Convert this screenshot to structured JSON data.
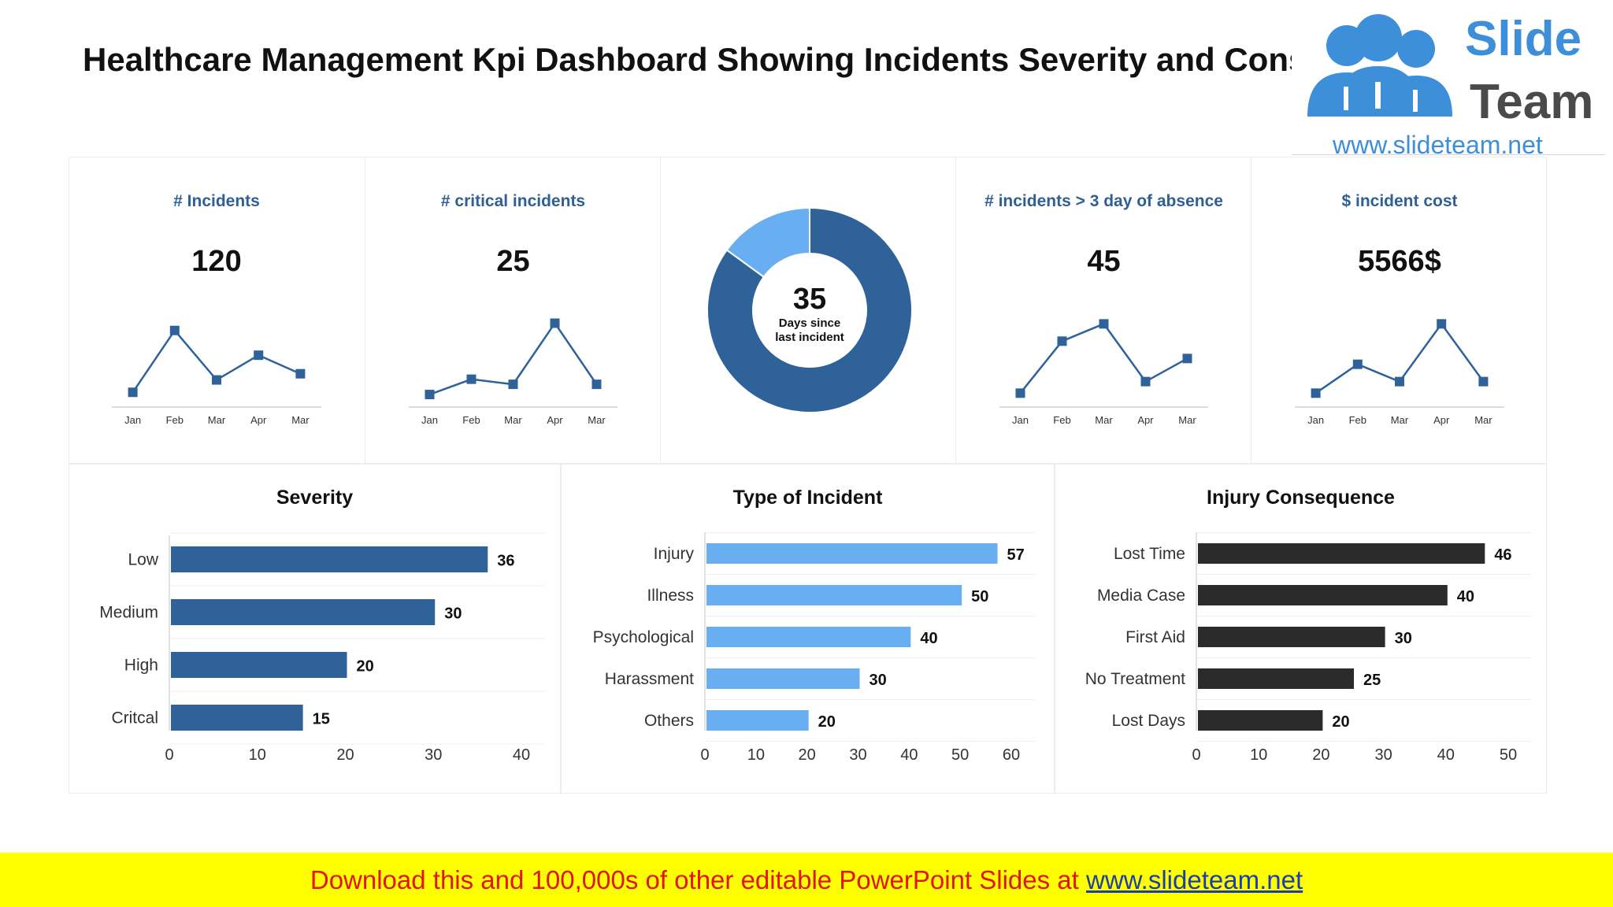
{
  "title": "Healthcare Management Kpi Dashboard Showing Incidents Severity and Consequences",
  "logo": {
    "word1": "Slide",
    "word2": "Team",
    "url": "www.slideteam.net"
  },
  "footer": {
    "text": "Download this and 100,000s of other editable PowerPoint Slides at ",
    "link": "www.slideteam.net"
  },
  "colors": {
    "dark_blue": "#2e6299",
    "light_blue": "#6aaef2",
    "black_bar": "#2b2b2b",
    "kpi_title": "#2f5f96"
  },
  "kpis": [
    {
      "title": "# Incidents",
      "value": "120"
    },
    {
      "title": "# critical incidents",
      "value": "25"
    },
    {
      "title": "# incidents > 3 day of absence",
      "value": "45"
    },
    {
      "title": "$ incident cost",
      "value": "5566$"
    }
  ],
  "donut": {
    "value": "35",
    "caption_line1": "Days since",
    "caption_line2": "last incident"
  },
  "chart_data": [
    {
      "type": "line",
      "categories": [
        "Jan",
        "Feb",
        "Mar",
        "Apr",
        "Mar"
      ],
      "values": [
        1,
        6,
        2,
        4,
        2.5
      ],
      "ylim": [
        0,
        7
      ]
    },
    {
      "type": "line",
      "categories": [
        "Jan",
        "Feb",
        "Mar",
        "Apr",
        "Mar"
      ],
      "values": [
        1,
        2.5,
        2,
        8,
        2
      ],
      "ylim": [
        0,
        8.5
      ]
    },
    {
      "type": "pie",
      "slices": [
        {
          "value": 85,
          "color": "#2e6299"
        },
        {
          "value": 15,
          "color": "#6aaef2"
        }
      ]
    },
    {
      "type": "line",
      "categories": [
        "Jan",
        "Feb",
        "Mar",
        "Apr",
        "Mar"
      ],
      "values": [
        1,
        5.5,
        7,
        2,
        4
      ],
      "ylim": [
        0,
        7.5
      ]
    },
    {
      "type": "line",
      "categories": [
        "Jan",
        "Feb",
        "Mar",
        "Apr",
        "Mar"
      ],
      "values": [
        1,
        3.5,
        2,
        7,
        2
      ],
      "ylim": [
        0,
        7.5
      ]
    },
    {
      "type": "bar",
      "orientation": "horizontal",
      "title": "Severity",
      "categories": [
        "Low",
        "Medium",
        "High",
        "Critcal"
      ],
      "values": [
        36,
        30,
        20,
        15
      ],
      "xlim": [
        0,
        40
      ],
      "ticks": [
        0,
        10,
        20,
        30,
        40
      ],
      "color": "#2e6299"
    },
    {
      "type": "bar",
      "orientation": "horizontal",
      "title": "Type of Incident",
      "categories": [
        "Injury",
        "Illness",
        "Psychological",
        "Harassment",
        "Others"
      ],
      "values": [
        57,
        50,
        40,
        30,
        20
      ],
      "xlim": [
        0,
        60
      ],
      "ticks": [
        0,
        10,
        20,
        30,
        40,
        50,
        60
      ],
      "color": "#6aaef2"
    },
    {
      "type": "bar",
      "orientation": "horizontal",
      "title": "Injury Consequence",
      "categories": [
        "Lost Time",
        "Media Case",
        "First Aid",
        "No Treatment",
        "Lost Days"
      ],
      "values": [
        46,
        40,
        30,
        25,
        20
      ],
      "xlim": [
        0,
        50
      ],
      "ticks": [
        0,
        10,
        20,
        30,
        40,
        50
      ],
      "color": "#2b2b2b"
    }
  ]
}
